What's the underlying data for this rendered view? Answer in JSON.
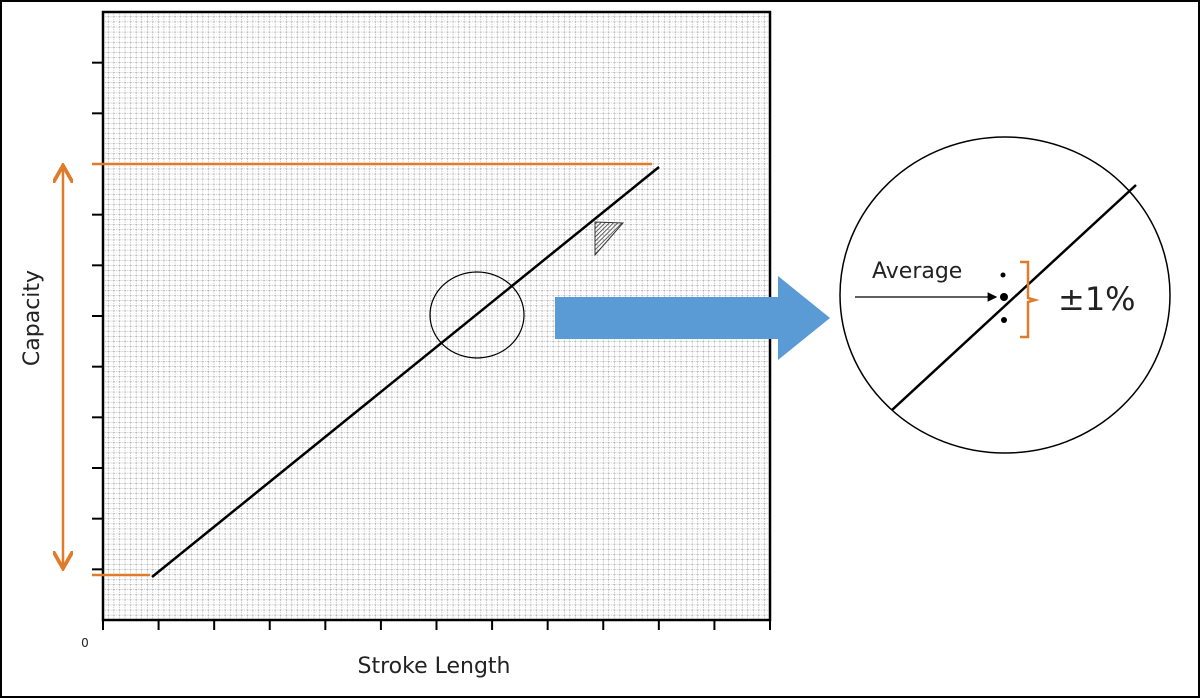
{
  "axes": {
    "y_label": "Capacity",
    "x_label": "Stroke Length",
    "origin_label": "0"
  },
  "zoom": {
    "label": "Average",
    "tolerance": "±1%"
  }
}
